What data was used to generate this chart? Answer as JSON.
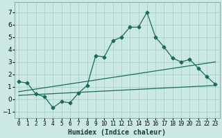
{
  "xlabel": "Humidex (Indice chaleur)",
  "x_ticks": [
    0,
    1,
    2,
    3,
    4,
    5,
    6,
    7,
    8,
    9,
    10,
    11,
    12,
    13,
    14,
    15,
    16,
    17,
    18,
    19,
    20,
    21,
    22,
    23
  ],
  "ylim": [
    -1.5,
    7.8
  ],
  "xlim": [
    -0.5,
    23.5
  ],
  "line1_x": [
    0,
    1,
    2,
    3,
    4,
    5,
    6,
    7,
    8,
    9,
    10,
    11,
    12,
    13,
    14,
    15,
    16,
    17,
    18,
    19,
    20,
    21,
    22,
    23
  ],
  "line1_y": [
    1.4,
    1.3,
    0.4,
    0.2,
    -0.7,
    -0.2,
    -0.3,
    0.5,
    1.1,
    3.5,
    3.4,
    4.7,
    5.0,
    5.8,
    5.8,
    7.0,
    5.0,
    4.2,
    3.3,
    3.0,
    3.2,
    2.5,
    1.8,
    1.2
  ],
  "line2_x": [
    0,
    23
  ],
  "line2_y": [
    0.6,
    3.0
  ],
  "line3_x": [
    0,
    23
  ],
  "line3_y": [
    0.3,
    1.1
  ],
  "line_color": "#1a6b5a",
  "bg_color": "#cce8e4",
  "grid_color": "#aacfca",
  "yticks": [
    -1,
    0,
    1,
    2,
    3,
    4,
    5,
    6,
    7
  ],
  "xlabel_fontsize": 7,
  "tick_fontsize": 6.5,
  "marker_size": 2.5,
  "line_width": 0.9
}
